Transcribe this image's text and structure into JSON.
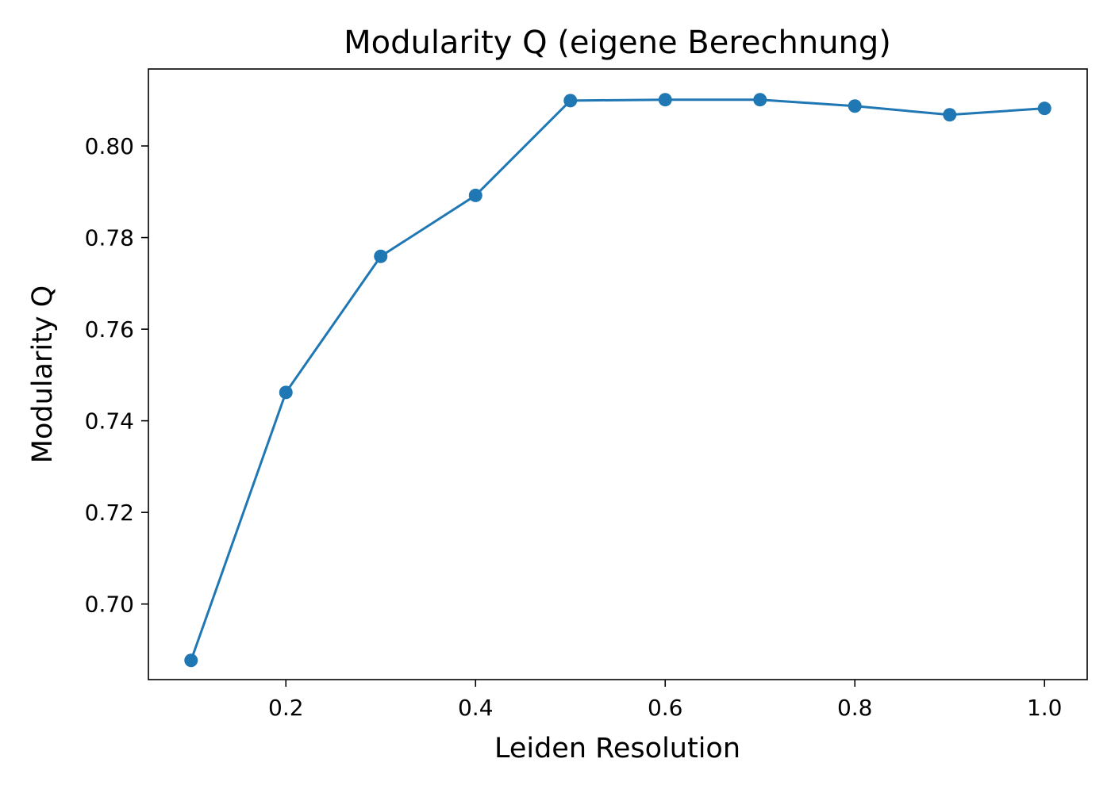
{
  "chart_data": {
    "type": "line",
    "title": "Modularity Q (eigene Berechnung)",
    "xlabel": "Leiden Resolution",
    "ylabel": "Modularity Q",
    "xlim": [
      0.055,
      1.045
    ],
    "ylim": [
      0.6835,
      0.8168
    ],
    "x_ticks": [
      0.2,
      0.4,
      0.6,
      0.8,
      1.0
    ],
    "x_tick_labels": [
      "0.2",
      "0.4",
      "0.6",
      "0.8",
      "1.0"
    ],
    "y_ticks": [
      0.7,
      0.72,
      0.74,
      0.76,
      0.78,
      0.8
    ],
    "y_tick_labels": [
      "0.70",
      "0.72",
      "0.74",
      "0.76",
      "0.78",
      "0.80"
    ],
    "grid": false,
    "legend": "none",
    "series": [
      {
        "color": "#1f77b4",
        "marker": "circle",
        "x": [
          0.1,
          0.2,
          0.3,
          0.4,
          0.5,
          0.6,
          0.7,
          0.8,
          0.9,
          1.0
        ],
        "y": [
          0.6877,
          0.7462,
          0.7759,
          0.7892,
          0.8099,
          0.8101,
          0.8101,
          0.8087,
          0.8068,
          0.8082
        ]
      }
    ]
  }
}
